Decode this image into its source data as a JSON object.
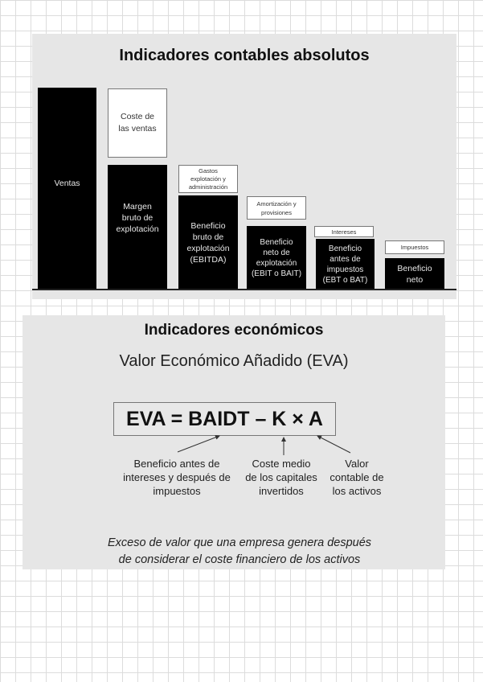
{
  "accounting": {
    "title": "Indicadores contables absolutos",
    "bars": [
      "Ventas",
      "Margen\nbruto de\nexplotación",
      "Beneficio\nbruto de\nexplotación\n(EBITDA)",
      "Beneficio\nneto de\nexplotación\n(EBIT o BAIT)",
      "Beneficio\nantes de\nimpuestos\n(EBT o BAT)",
      "Beneficio\nneto"
    ],
    "deductions": [
      "Coste de\nlas ventas",
      "Gastos\nexplotación y\nadministración",
      "Amortización y\nprovisiones",
      "Intereses",
      "Impuestos"
    ]
  },
  "economic": {
    "title": "Indicadores económicos",
    "subtitle": "Valor Económico Añadido (EVA)",
    "formula": "EVA = BAIDT – K × A",
    "terms": [
      "Beneficio antes de\nintereses y después  de\nimpuestos",
      "Coste medio\nde los capitales\ninvertidos",
      "Valor\ncontable de\nlos activos"
    ],
    "caption": "Exceso de valor que una empresa genera después\nde considerar el coste financiero de los activos"
  }
}
